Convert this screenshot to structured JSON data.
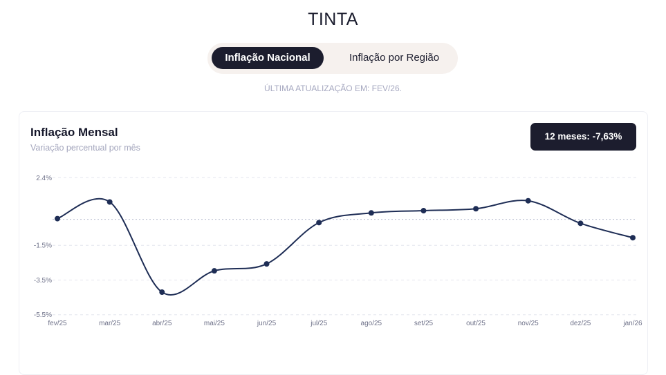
{
  "page_title": "TINTA",
  "tabs": [
    {
      "label": "Inflação Nacional",
      "active": true
    },
    {
      "label": "Inflação por Região",
      "active": false
    }
  ],
  "last_update": "ÚLTIMA ATUALIZAÇÃO EM: FEV/26.",
  "card": {
    "title": "Inflação Mensal",
    "subtitle": "Variação percentual por mês",
    "badge": "12 meses: -7,63%"
  },
  "colors": {
    "line": "#1e2d55",
    "accent_dark": "#1c1d2e",
    "grid": "#e4e5ee",
    "zero_line": "#b8bccf"
  },
  "chart_data": {
    "type": "line",
    "title": "Inflação Mensal",
    "subtitle": "Variação percentual por mês",
    "categories": [
      "fev/25",
      "mar/25",
      "abr/25",
      "mai/25",
      "jun/25",
      "jul/25",
      "ago/25",
      "set/25",
      "out/25",
      "nov/25",
      "dez/25",
      "jan/26"
    ],
    "values": [
      0.04,
      1.0,
      -4.2,
      -2.97,
      -2.57,
      -0.19,
      0.37,
      0.5,
      0.61,
      1.07,
      -0.23,
      -1.06
    ],
    "y_ticks": [
      {
        "value": 2.4,
        "label": "2.4%"
      },
      {
        "value": -1.5,
        "label": "-1.5%"
      },
      {
        "value": -3.5,
        "label": "-3.5%"
      },
      {
        "value": -5.5,
        "label": "-5.5%"
      }
    ],
    "ylim": [
      -5.5,
      2.4
    ],
    "zero_line": true,
    "grid": "horizontal dashed",
    "smooth": true
  }
}
